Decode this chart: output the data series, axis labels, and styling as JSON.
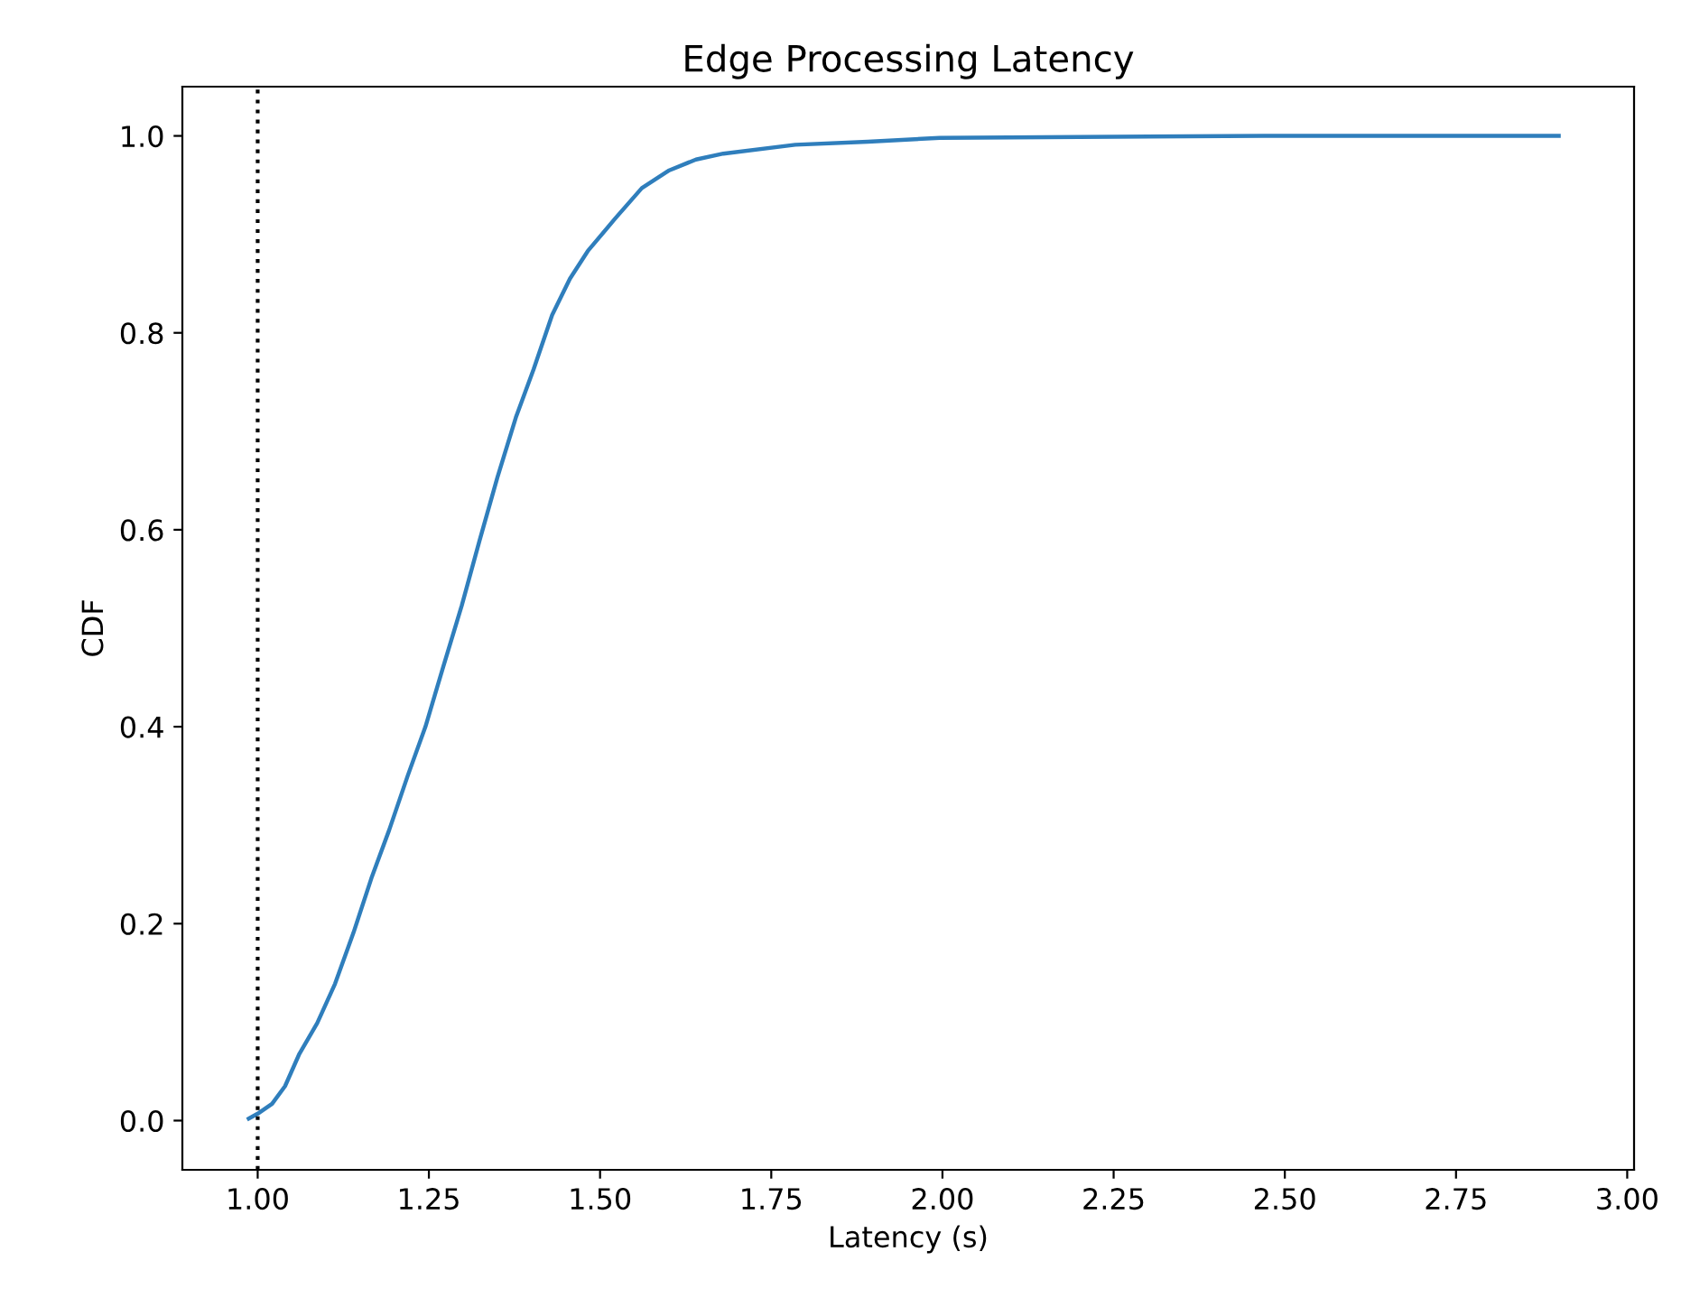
{
  "chart_data": {
    "type": "line",
    "title": "Edge Processing Latency",
    "xlabel": "Latency (s)",
    "ylabel": "CDF",
    "x": [
      0.987,
      1.0,
      1.021,
      1.04,
      1.061,
      1.087,
      1.113,
      1.14,
      1.166,
      1.192,
      1.219,
      1.245,
      1.271,
      1.298,
      1.324,
      1.35,
      1.377,
      1.403,
      1.43,
      1.456,
      1.482,
      1.522,
      1.561,
      1.601,
      1.64,
      1.68,
      1.785,
      1.891,
      1.996,
      2.47,
      2.9
    ],
    "series": [
      {
        "color": "#2f7ebc",
        "values": [
          0.002,
          0.007,
          0.017,
          0.035,
          0.068,
          0.099,
          0.139,
          0.191,
          0.246,
          0.295,
          0.35,
          0.4,
          0.461,
          0.523,
          0.589,
          0.653,
          0.714,
          0.763,
          0.818,
          0.855,
          0.883,
          0.916,
          0.947,
          0.965,
          0.976,
          0.982,
          0.991,
          0.994,
          0.998,
          1.0,
          1.0
        ]
      }
    ],
    "xlim": [
      0.89,
      3.01
    ],
    "ylim": [
      -0.05,
      1.05
    ],
    "xticks": [
      {
        "value": 1.0,
        "label": "1.00"
      },
      1.25,
      {
        "value": 1.5,
        "label": "1.50"
      },
      1.75,
      {
        "value": 2.0,
        "label": "2.00"
      },
      2.25,
      {
        "value": 2.5,
        "label": "2.50"
      },
      2.75,
      {
        "value": 3.0,
        "label": "3.00"
      }
    ],
    "yticks": [
      {
        "value": 0,
        "label": "0.0"
      },
      0.2,
      0.4,
      0.6,
      0.8,
      {
        "value": 1,
        "label": "1.0"
      }
    ],
    "ref_lines": [
      {
        "axis": "x",
        "value": 1.0,
        "color": "#000000",
        "line_style": "dotted"
      }
    ],
    "grid": false,
    "legend": false
  }
}
